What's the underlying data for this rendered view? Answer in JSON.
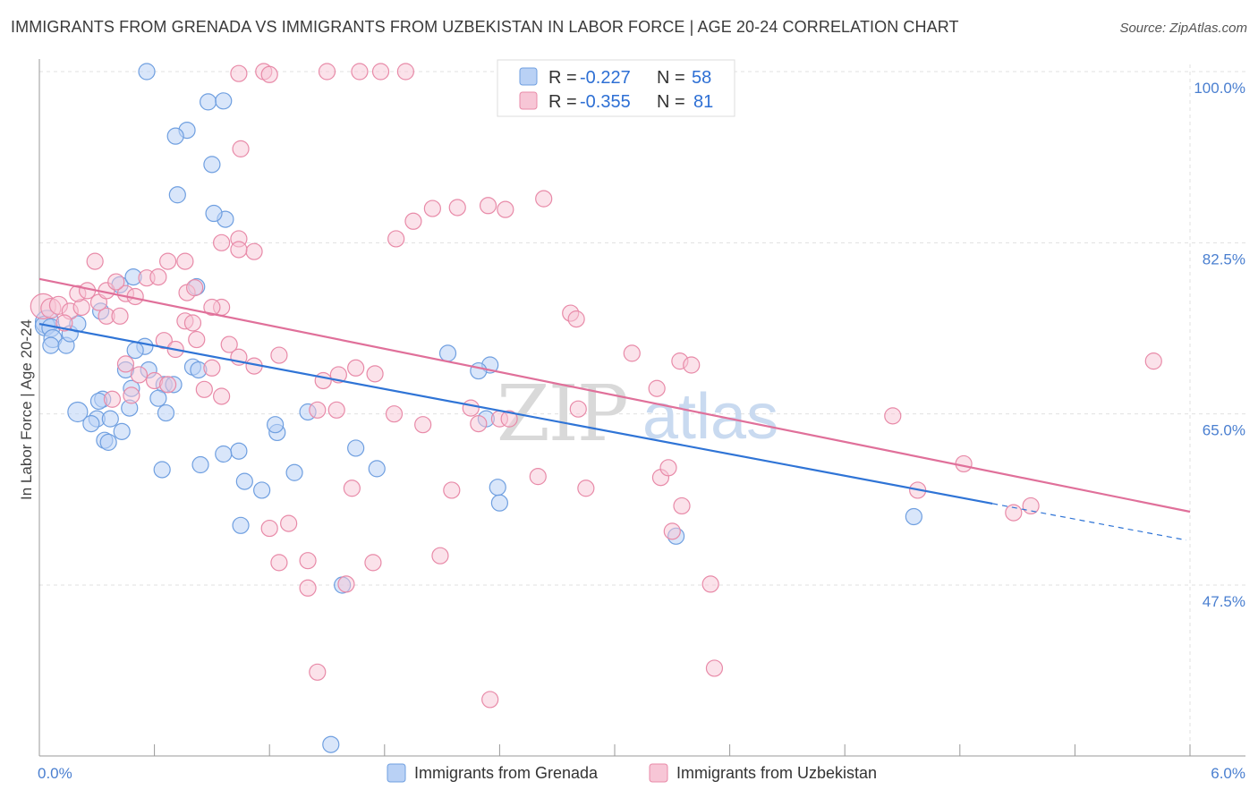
{
  "header": {
    "title": "IMMIGRANTS FROM GRENADA VS IMMIGRANTS FROM UZBEKISTAN IN LABOR FORCE | AGE 20-24 CORRELATION CHART",
    "source": "Source: ZipAtlas.com"
  },
  "legend": {
    "r_label": "R =",
    "n_label": "N =",
    "series": [
      {
        "r": "-0.227",
        "n": "58"
      },
      {
        "r": "-0.355",
        "n": "81"
      }
    ]
  },
  "watermark": {
    "zip": "ZIP",
    "atlas": "atlas"
  },
  "colors": {
    "blue_fill": "#b9d1f5",
    "blue_stroke": "#6f9fe0",
    "blue_line": "#2f74d6",
    "pink_fill": "#f7c6d6",
    "pink_stroke": "#e88aa8",
    "pink_line": "#e0709a",
    "grid": "#e0e0e0",
    "tick_text": "#4a7fd0"
  },
  "chart_data": {
    "type": "scatter",
    "title": "IMMIGRANTS FROM GRENADA VS IMMIGRANTS FROM UZBEKISTAN IN LABOR FORCE | AGE 20-24 CORRELATION CHART",
    "xlabel": "",
    "ylabel": "In Labor Force | Age 20-24",
    "xlim": [
      0,
      6
    ],
    "ylim": [
      29.5,
      102
    ],
    "x_tick_labels": [
      "0.0%",
      "6.0%"
    ],
    "y_ticks": [
      47.5,
      65.0,
      82.5,
      100.0
    ],
    "y_tick_labels": [
      "47.5%",
      "65.0%",
      "82.5%",
      "100.0%"
    ],
    "grid": true,
    "series": [
      {
        "name": "Immigrants from Grenada",
        "r": -0.227,
        "n": 58,
        "trend": {
          "x0": 0,
          "y0": 74.2,
          "x1": 5.98,
          "y1": 52.1,
          "solid_until": 4.97
        },
        "points": [
          [
            0.04,
            74.4,
            13
          ],
          [
            0.03,
            74.0,
            11
          ],
          [
            0.06,
            73.8,
            10
          ],
          [
            0.07,
            72.7,
            10
          ],
          [
            0.06,
            72.0,
            9
          ],
          [
            0.14,
            72.0,
            9
          ],
          [
            0.16,
            73.2,
            9
          ],
          [
            0.2,
            74.2,
            9
          ],
          [
            0.32,
            75.5,
            9
          ],
          [
            0.42,
            78.2,
            9
          ],
          [
            0.49,
            79.0,
            9
          ],
          [
            0.82,
            78.0,
            9
          ],
          [
            0.55,
            71.9,
            9
          ],
          [
            0.5,
            71.5,
            9
          ],
          [
            0.57,
            69.5,
            9
          ],
          [
            0.45,
            69.5,
            9
          ],
          [
            0.48,
            67.6,
            9
          ],
          [
            0.33,
            66.5,
            9
          ],
          [
            0.31,
            66.3,
            9
          ],
          [
            0.47,
            65.6,
            9
          ],
          [
            0.65,
            68.0,
            9
          ],
          [
            0.7,
            68.0,
            9
          ],
          [
            0.62,
            66.6,
            9
          ],
          [
            0.66,
            65.1,
            9
          ],
          [
            0.3,
            64.5,
            9
          ],
          [
            0.37,
            64.5,
            9
          ],
          [
            0.8,
            69.8,
            9
          ],
          [
            0.83,
            69.5,
            9
          ],
          [
            0.2,
            65.2,
            11
          ],
          [
            0.27,
            64.0,
            9
          ],
          [
            0.43,
            63.2,
            9
          ],
          [
            0.34,
            62.3,
            9
          ],
          [
            0.36,
            62.1,
            9
          ],
          [
            0.64,
            59.3,
            9
          ],
          [
            0.84,
            59.8,
            9
          ],
          [
            1.04,
            61.2,
            9
          ],
          [
            0.96,
            60.9,
            9
          ],
          [
            1.07,
            58.1,
            9
          ],
          [
            1.24,
            63.1,
            9
          ],
          [
            1.4,
            65.2,
            9
          ],
          [
            1.23,
            63.9,
            9
          ],
          [
            1.33,
            59.0,
            9
          ],
          [
            1.65,
            61.5,
            9
          ],
          [
            1.76,
            59.4,
            9
          ],
          [
            2.35,
            70.0,
            9
          ],
          [
            2.13,
            71.2,
            9
          ],
          [
            2.29,
            69.4,
            9
          ],
          [
            2.33,
            64.5,
            9
          ],
          [
            2.4,
            55.9,
            9
          ],
          [
            0.56,
            100.0,
            9
          ],
          [
            0.88,
            96.9,
            9
          ],
          [
            0.96,
            97.0,
            9
          ],
          [
            0.77,
            94.0,
            9
          ],
          [
            0.71,
            93.4,
            9
          ],
          [
            0.9,
            90.5,
            9
          ],
          [
            0.72,
            87.4,
            9
          ],
          [
            0.97,
            84.9,
            9
          ],
          [
            0.91,
            85.5,
            9
          ],
          [
            2.39,
            57.5,
            9
          ],
          [
            1.16,
            57.2,
            9
          ],
          [
            1.05,
            53.6,
            9
          ],
          [
            3.32,
            52.5,
            9
          ],
          [
            4.56,
            54.5,
            9
          ],
          [
            1.58,
            47.5,
            9
          ],
          [
            1.52,
            31.2,
            9
          ]
        ]
      },
      {
        "name": "Immigrants from Uzbekistan",
        "r": -0.355,
        "n": 81,
        "trend": {
          "x0": 0,
          "y0": 78.8,
          "x1": 6.0,
          "y1": 55.0,
          "solid_until": 6.0
        },
        "points": [
          [
            0.02,
            76.0,
            14
          ],
          [
            0.06,
            75.8,
            11
          ],
          [
            0.1,
            76.1,
            10
          ],
          [
            0.16,
            75.5,
            9
          ],
          [
            0.22,
            75.9,
            9
          ],
          [
            0.13,
            74.3,
            9
          ],
          [
            0.35,
            75.0,
            9
          ],
          [
            0.42,
            75.0,
            9
          ],
          [
            0.45,
            77.3,
            9
          ],
          [
            0.2,
            77.3,
            9
          ],
          [
            0.25,
            77.6,
            9
          ],
          [
            0.31,
            76.4,
            9
          ],
          [
            0.29,
            80.6,
            9
          ],
          [
            0.35,
            77.6,
            9
          ],
          [
            0.4,
            78.5,
            9
          ],
          [
            0.5,
            77.0,
            9
          ],
          [
            0.56,
            78.9,
            9
          ],
          [
            0.62,
            79.0,
            9
          ],
          [
            0.77,
            77.4,
            9
          ],
          [
            0.76,
            74.5,
            9
          ],
          [
            0.8,
            74.3,
            9
          ],
          [
            0.95,
            75.9,
            9
          ],
          [
            0.9,
            75.9,
            9
          ],
          [
            0.65,
            72.5,
            9
          ],
          [
            0.71,
            71.6,
            9
          ],
          [
            0.82,
            72.6,
            9
          ],
          [
            0.99,
            72.1,
            9
          ],
          [
            1.04,
            70.8,
            9
          ],
          [
            1.12,
            69.9,
            9
          ],
          [
            1.25,
            71.0,
            9
          ],
          [
            0.45,
            70.1,
            9
          ],
          [
            0.52,
            69.0,
            9
          ],
          [
            0.6,
            68.4,
            9
          ],
          [
            0.67,
            68.0,
            9
          ],
          [
            0.86,
            67.5,
            9
          ],
          [
            0.9,
            69.7,
            9
          ],
          [
            0.38,
            66.5,
            9
          ],
          [
            0.48,
            66.9,
            9
          ],
          [
            0.95,
            66.8,
            9
          ],
          [
            1.48,
            68.4,
            9
          ],
          [
            1.56,
            69.0,
            9
          ],
          [
            1.65,
            69.7,
            9
          ],
          [
            1.75,
            69.1,
            9
          ],
          [
            1.55,
            65.4,
            9
          ],
          [
            1.45,
            65.4,
            9
          ],
          [
            1.85,
            65.0,
            9
          ],
          [
            2.25,
            65.6,
            9
          ],
          [
            2.4,
            64.5,
            9
          ],
          [
            2.0,
            63.9,
            9
          ],
          [
            2.29,
            64.0,
            9
          ],
          [
            2.45,
            64.5,
            9
          ],
          [
            2.81,
            65.5,
            9
          ],
          [
            3.09,
            71.2,
            9
          ],
          [
            3.34,
            70.4,
            9
          ],
          [
            3.22,
            67.6,
            9
          ],
          [
            3.4,
            70.0,
            9
          ],
          [
            2.15,
            57.2,
            9
          ],
          [
            1.63,
            57.4,
            9
          ],
          [
            2.6,
            58.6,
            9
          ],
          [
            2.85,
            57.4,
            9
          ],
          [
            1.2,
            53.3,
            9
          ],
          [
            1.3,
            53.8,
            9
          ],
          [
            2.09,
            50.5,
            9
          ],
          [
            1.4,
            50.0,
            9
          ],
          [
            1.25,
            49.8,
            9
          ],
          [
            1.74,
            49.8,
            9
          ],
          [
            3.24,
            58.5,
            9
          ],
          [
            3.35,
            55.6,
            9
          ],
          [
            1.4,
            47.2,
            9
          ],
          [
            1.6,
            47.6,
            9
          ],
          [
            4.45,
            64.8,
            9
          ],
          [
            4.58,
            57.2,
            9
          ],
          [
            4.82,
            59.9,
            9
          ],
          [
            5.08,
            54.9,
            9
          ],
          [
            5.17,
            55.6,
            9
          ],
          [
            5.81,
            70.4,
            9
          ],
          [
            3.28,
            59.5,
            9
          ],
          [
            3.3,
            53.0,
            9
          ],
          [
            3.5,
            47.6,
            9
          ],
          [
            3.52,
            39.0,
            9
          ],
          [
            1.45,
            38.6,
            9
          ],
          [
            2.35,
            35.8,
            9
          ]
        ]
      }
    ]
  },
  "chart_extra_points_pink_top": [
    [
      1.17,
      100.0
    ],
    [
      1.5,
      100.0
    ],
    [
      1.67,
      100.0
    ],
    [
      1.78,
      100.0
    ],
    [
      1.91,
      100.0
    ],
    [
      1.2,
      99.7
    ],
    [
      1.04,
      99.8
    ],
    [
      1.05,
      92.1
    ],
    [
      2.05,
      86.0
    ],
    [
      2.43,
      85.9
    ],
    [
      2.18,
      86.1
    ],
    [
      2.34,
      86.3
    ],
    [
      2.63,
      87.0
    ],
    [
      1.95,
      84.7
    ],
    [
      1.86,
      82.9
    ],
    [
      1.04,
      82.9
    ],
    [
      0.95,
      82.5
    ],
    [
      1.12,
      81.6
    ],
    [
      1.04,
      81.8
    ],
    [
      0.67,
      80.6
    ],
    [
      0.76,
      80.6
    ],
    [
      0.81,
      77.9
    ],
    [
      2.77,
      75.3
    ],
    [
      2.8,
      74.7
    ]
  ],
  "bottom_legend": {
    "items": [
      {
        "label": "Immigrants from Grenada"
      },
      {
        "label": "Immigrants from Uzbekistan"
      }
    ]
  },
  "axis": {
    "ylabel": "In Labor Force | Age 20-24",
    "x_left": "0.0%",
    "x_right": "6.0%",
    "y_ticks": [
      "100.0%",
      "82.5%",
      "65.0%",
      "47.5%"
    ]
  }
}
